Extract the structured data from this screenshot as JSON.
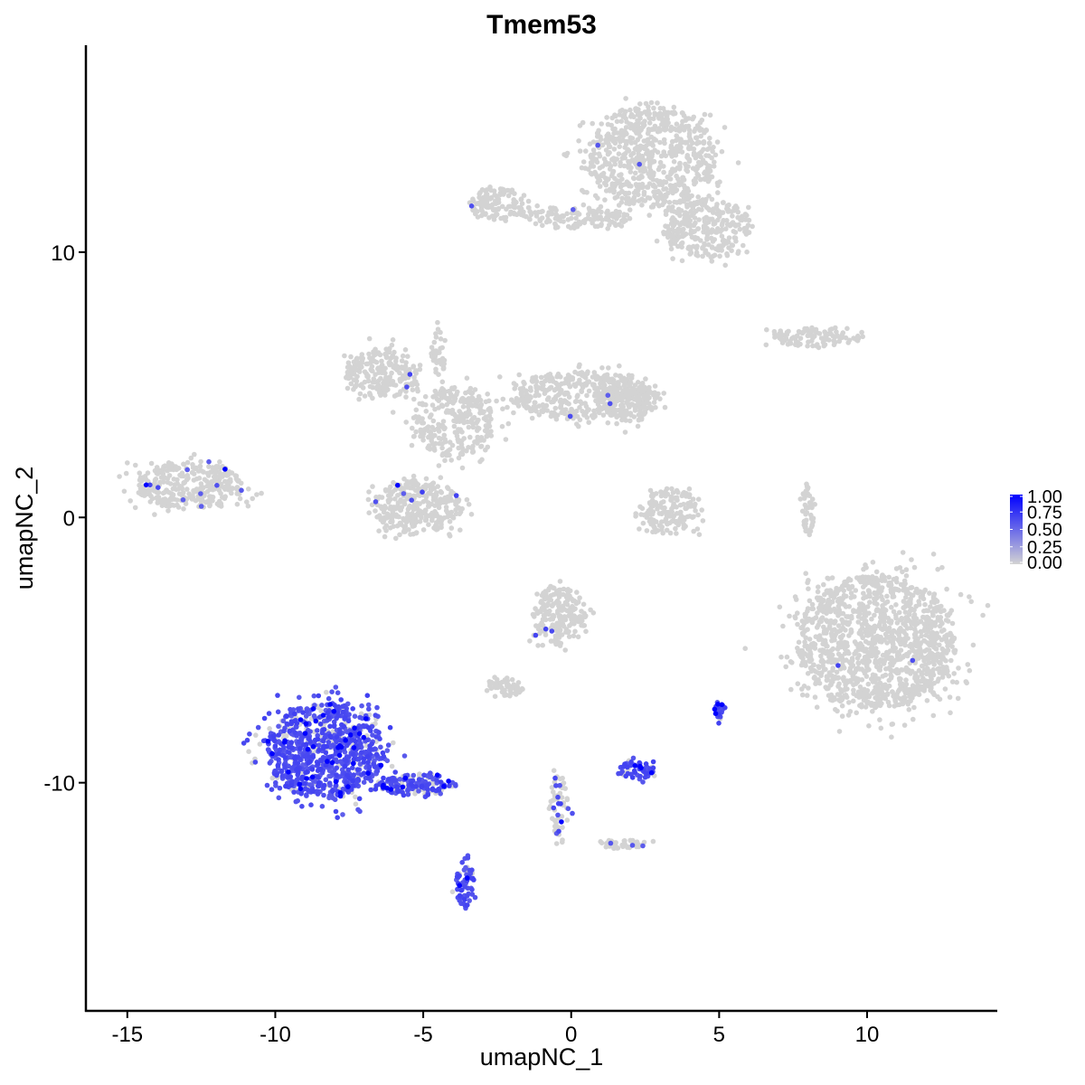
{
  "chart_data": {
    "type": "scatter",
    "title": "Tmem53",
    "xlabel": "umapNC_1",
    "ylabel": "umapNC_2",
    "xlim": [
      -16.4,
      14.4
    ],
    "ylim": [
      -18.6,
      17.8
    ],
    "xticks": [
      -15,
      -10,
      -5,
      0,
      5,
      10
    ],
    "xtick_labels": [
      "-15",
      "-10",
      "-5",
      "0",
      "5",
      "10"
    ],
    "yticks": [
      -10,
      0,
      10
    ],
    "ytick_labels": [
      "-10",
      "0",
      "10"
    ],
    "grid": false,
    "legend": {
      "placement": "right",
      "low_color": "#D3D3D3",
      "high_color": "#0000FF",
      "range": [
        0,
        1
      ],
      "ticks": [
        "1.00",
        "0.75",
        "0.50",
        "0.25",
        "0.00"
      ]
    },
    "clusters": [
      {
        "x": 2.7,
        "y": 13.6,
        "rx": 2.2,
        "ry": 1.9,
        "n": 700,
        "frac": 0.004
      },
      {
        "x": 4.6,
        "y": 10.9,
        "rx": 1.5,
        "ry": 1.1,
        "n": 300,
        "frac": 0.0
      },
      {
        "x": 0.0,
        "y": 11.3,
        "rx": 2.0,
        "ry": 0.4,
        "n": 140,
        "frac": 0.01
      },
      {
        "x": -2.5,
        "y": 11.8,
        "rx": 0.9,
        "ry": 0.6,
        "n": 120,
        "frac": 0.01
      },
      {
        "x": 8.2,
        "y": 6.8,
        "rx": 1.5,
        "ry": 0.35,
        "n": 110,
        "frac": 0.01
      },
      {
        "x": -6.4,
        "y": 5.4,
        "rx": 1.2,
        "ry": 1.0,
        "n": 220,
        "frac": 0.01
      },
      {
        "x": -4.0,
        "y": 3.6,
        "rx": 1.4,
        "ry": 1.3,
        "n": 280,
        "frac": 0.0
      },
      {
        "x": 0.3,
        "y": 4.6,
        "rx": 2.4,
        "ry": 0.9,
        "n": 400,
        "frac": 0.01
      },
      {
        "x": 1.9,
        "y": 4.4,
        "rx": 1.0,
        "ry": 0.8,
        "n": 160,
        "frac": 0.01
      },
      {
        "x": -5.2,
        "y": 0.4,
        "rx": 1.5,
        "ry": 1.0,
        "n": 330,
        "frac": 0.02
      },
      {
        "x": -4.5,
        "y": 6.3,
        "rx": 0.25,
        "ry": 1.1,
        "n": 40,
        "frac": 0.0
      },
      {
        "x": -12.9,
        "y": 1.2,
        "rx": 1.8,
        "ry": 0.9,
        "n": 330,
        "frac": 0.05
      },
      {
        "x": 3.3,
        "y": 0.2,
        "rx": 1.0,
        "ry": 0.9,
        "n": 160,
        "frac": 0.0
      },
      {
        "x": 8.0,
        "y": 0.3,
        "rx": 0.2,
        "ry": 1.0,
        "n": 50,
        "frac": 0.0
      },
      {
        "x": 10.3,
        "y": -4.7,
        "rx": 2.7,
        "ry": 2.5,
        "n": 1300,
        "frac": 0.004
      },
      {
        "x": -0.4,
        "y": -3.7,
        "rx": 0.9,
        "ry": 1.1,
        "n": 200,
        "frac": 0.03
      },
      {
        "x": -2.2,
        "y": -6.4,
        "rx": 0.6,
        "ry": 0.35,
        "n": 60,
        "frac": 0.0
      },
      {
        "x": -8.3,
        "y": -8.8,
        "rx": 2.0,
        "ry": 1.8,
        "n": 900,
        "frac": 0.8
      },
      {
        "x": -5.2,
        "y": -10.1,
        "rx": 1.3,
        "ry": 0.4,
        "n": 160,
        "frac": 0.7
      },
      {
        "x": -3.6,
        "y": -13.8,
        "rx": 0.3,
        "ry": 0.9,
        "n": 70,
        "frac": 0.75
      },
      {
        "x": 2.2,
        "y": -9.5,
        "rx": 0.6,
        "ry": 0.35,
        "n": 60,
        "frac": 0.8
      },
      {
        "x": 5.0,
        "y": -7.3,
        "rx": 0.18,
        "ry": 0.35,
        "n": 25,
        "frac": 0.9
      },
      {
        "x": -0.4,
        "y": -10.9,
        "rx": 0.35,
        "ry": 1.2,
        "n": 60,
        "frac": 0.15
      },
      {
        "x": 1.8,
        "y": -12.3,
        "rx": 0.9,
        "ry": 0.2,
        "n": 40,
        "frac": 0.05
      }
    ]
  }
}
